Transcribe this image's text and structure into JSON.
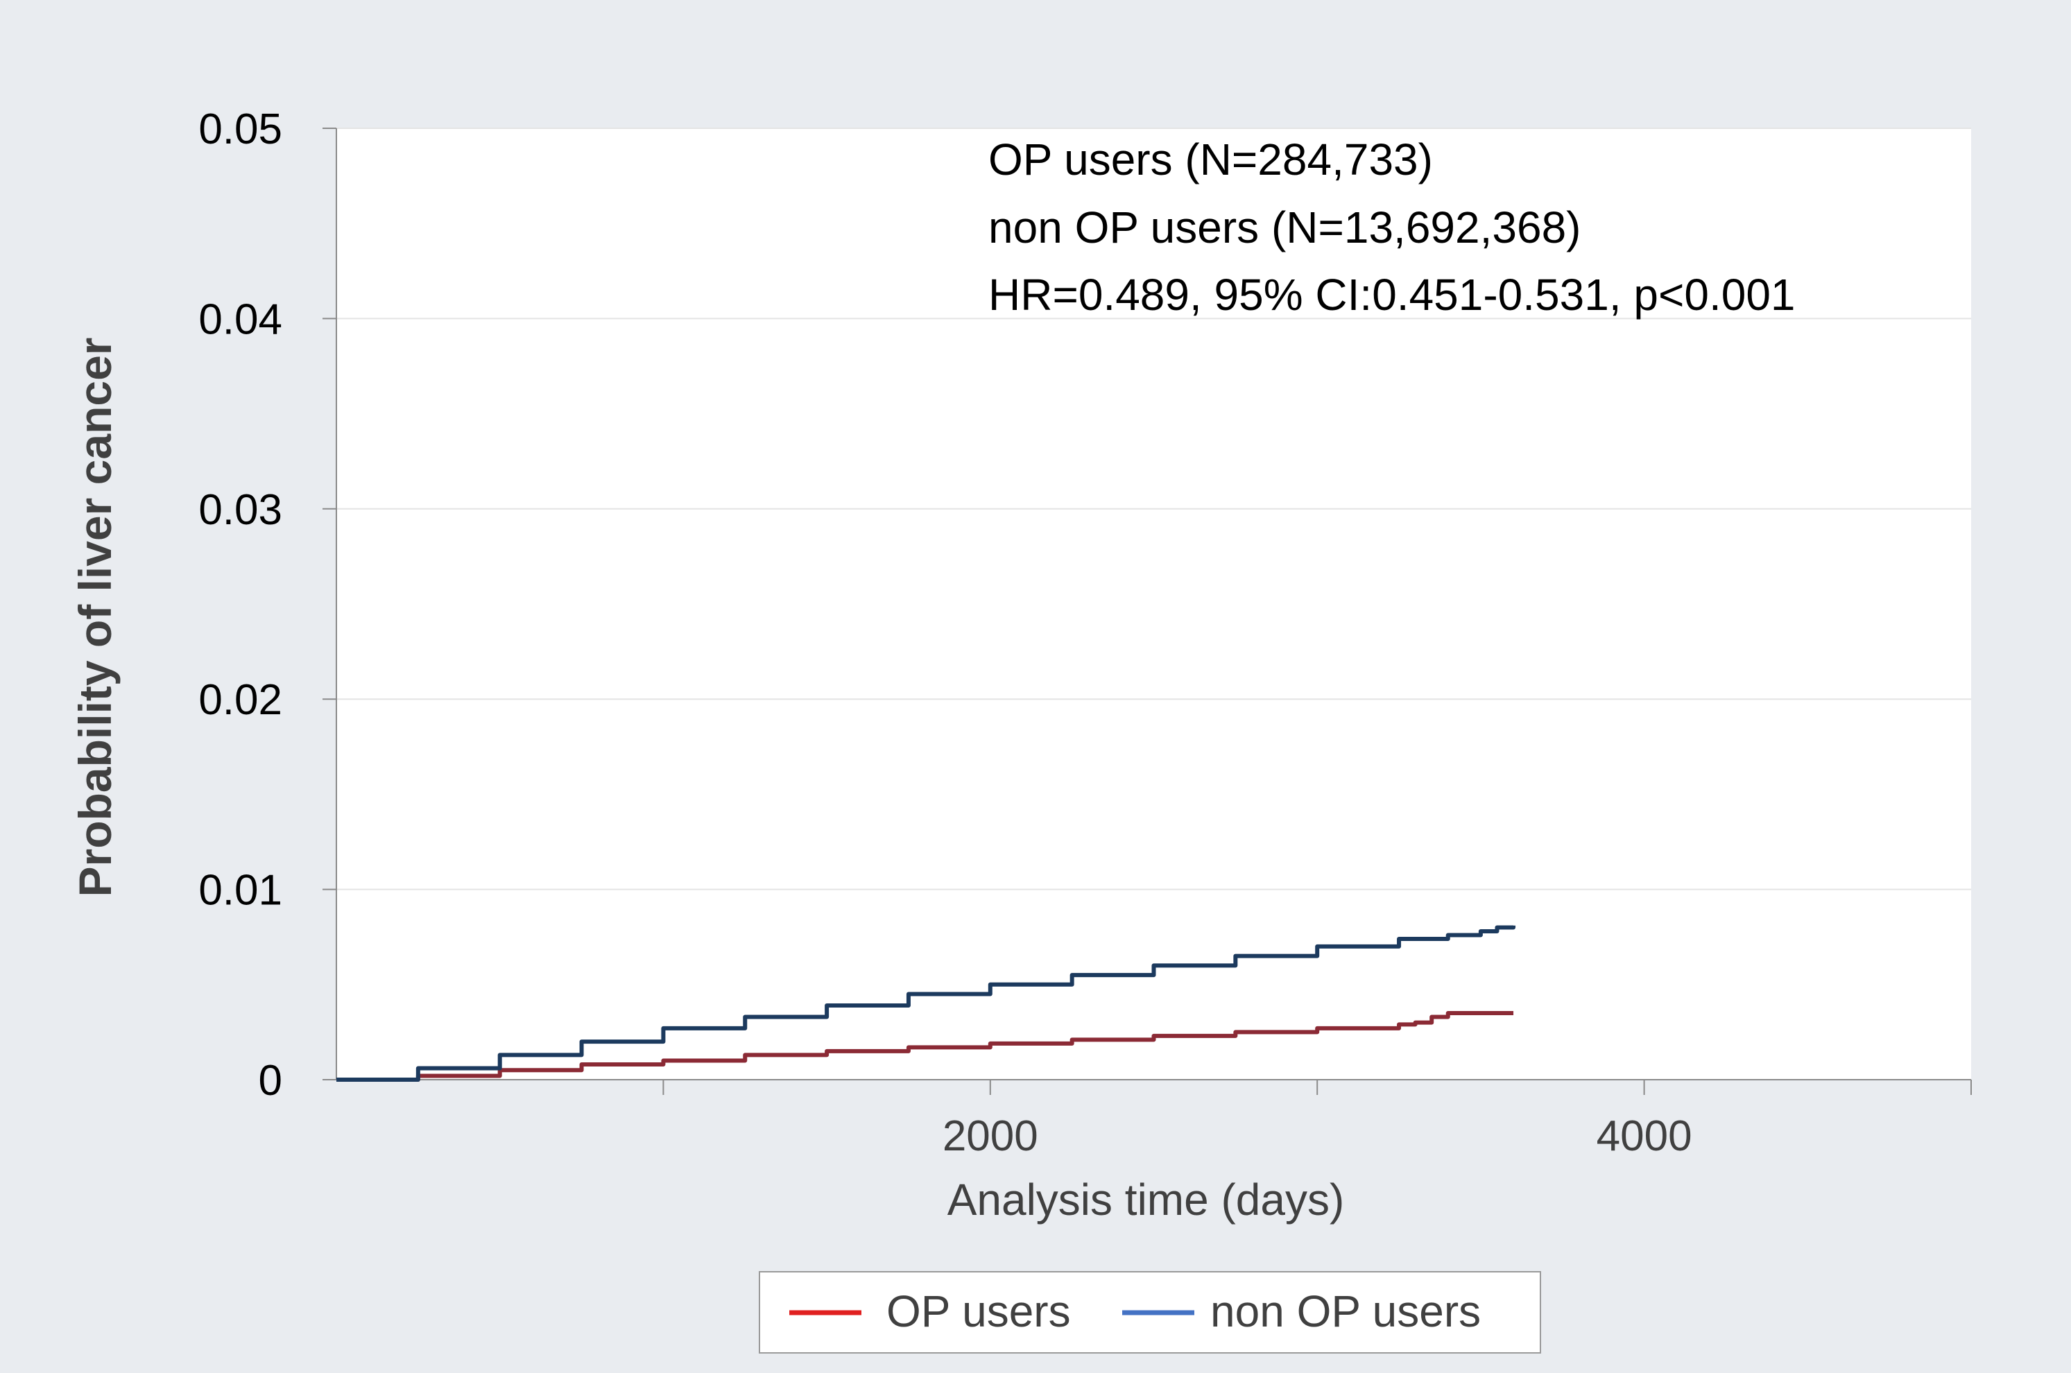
{
  "chart_data": {
    "type": "line",
    "title": "",
    "xlabel": "Analysis time (days)",
    "ylabel": "Probability of liver cancer",
    "xlim": [
      0,
      5000
    ],
    "ylim": [
      0,
      0.05
    ],
    "x_ticks": [
      1000,
      2000,
      3000,
      4000,
      5000
    ],
    "x_tick_labels": [
      "2000",
      "4000"
    ],
    "x_tick_labeled_values": [
      2000,
      4000
    ],
    "y_ticks": [
      0,
      0.01,
      0.02,
      0.03,
      0.04,
      0.05
    ],
    "y_tick_labels": [
      "0",
      "0.01",
      "0.02",
      "0.03",
      "0.04",
      "0.05"
    ],
    "grid": "horizontal",
    "legend_position": "bottom-center",
    "annotations": [
      "OP users (N=284,733)",
      "non OP users (N=13,692,368)",
      "HR=0.489, 95% CI:0.451-0.531, p<0.001"
    ],
    "series": [
      {
        "name": "OP users",
        "color": "#8b2a35",
        "legend_color": "#e02020",
        "x": [
          0,
          250,
          500,
          750,
          1000,
          1250,
          1500,
          1750,
          2000,
          2250,
          2500,
          2750,
          3000,
          3250,
          3300,
          3350,
          3400,
          3600
        ],
        "y": [
          0,
          0.0002,
          0.0005,
          0.0008,
          0.001,
          0.0013,
          0.0015,
          0.0017,
          0.0019,
          0.0021,
          0.0023,
          0.0025,
          0.0027,
          0.0029,
          0.003,
          0.0033,
          0.0035,
          0.0035
        ]
      },
      {
        "name": "non OP users",
        "color": "#1c3a5e",
        "legend_color": "#4472c4",
        "x": [
          0,
          250,
          500,
          750,
          1000,
          1250,
          1500,
          1750,
          2000,
          2250,
          2500,
          2750,
          3000,
          3250,
          3400,
          3500,
          3550,
          3600
        ],
        "y": [
          0,
          0.0006,
          0.0013,
          0.002,
          0.0027,
          0.0033,
          0.0039,
          0.0045,
          0.005,
          0.0055,
          0.006,
          0.0065,
          0.007,
          0.0074,
          0.0076,
          0.0078,
          0.008,
          0.0081
        ]
      }
    ]
  }
}
